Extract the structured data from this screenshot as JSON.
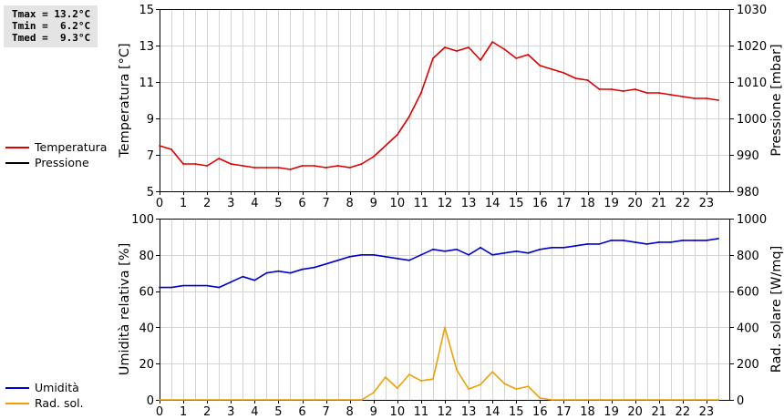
{
  "stats": {
    "tmax": "Tmax = 13.2°C",
    "tmin": "Tmin =  6.2°C",
    "tmed": "Tmed =  9.3°C"
  },
  "legend_top": [
    {
      "label": "Temperatura",
      "color": "#dd0000"
    },
    {
      "label": "Pressione",
      "color": "#000000"
    }
  ],
  "legend_bottom": [
    {
      "label": "Umidità",
      "color": "#0000cc"
    },
    {
      "label": "Rad. sol.",
      "color": "#f0a000"
    }
  ],
  "chart_data": [
    {
      "type": "line",
      "xlim": [
        0,
        24
      ],
      "x_ticks": [
        "0",
        "1",
        "2",
        "3",
        "4",
        "5",
        "6",
        "7",
        "8",
        "9",
        "10",
        "11",
        "12",
        "13",
        "14",
        "15",
        "16",
        "17",
        "18",
        "19",
        "20",
        "21",
        "22",
        "23"
      ],
      "ylabel": "Temperatura [°C]",
      "ylim": [
        5,
        15
      ],
      "y_ticks": [
        "5",
        "7",
        "9",
        "11",
        "13",
        "15"
      ],
      "ylabel_right": "Pressione [mbar]",
      "ylim_right": [
        980,
        1030
      ],
      "y_ticks_right": [
        "980",
        "990",
        "1000",
        "1010",
        "1020",
        "1030"
      ],
      "grid": true,
      "series": [
        {
          "name": "Temperatura",
          "color": "#dd0000",
          "axis": "left",
          "x": [
            0,
            0.5,
            1,
            1.5,
            2,
            2.5,
            3,
            3.5,
            4,
            4.5,
            5,
            5.5,
            6,
            6.5,
            7,
            7.5,
            8,
            8.5,
            9,
            9.5,
            10,
            10.5,
            11,
            11.5,
            12,
            12.5,
            13,
            13.5,
            14,
            14.5,
            15,
            15.5,
            16,
            16.5,
            17,
            17.5,
            18,
            18.5,
            19,
            19.5,
            20,
            20.5,
            21,
            21.5,
            22,
            22.5,
            23,
            23.5
          ],
          "y": [
            7.5,
            7.3,
            6.5,
            6.5,
            6.4,
            6.8,
            6.5,
            6.4,
            6.3,
            6.3,
            6.3,
            6.2,
            6.4,
            6.4,
            6.3,
            6.4,
            6.3,
            6.5,
            6.9,
            7.5,
            8.1,
            9.1,
            10.4,
            12.3,
            12.9,
            12.7,
            12.9,
            12.2,
            13.2,
            12.8,
            12.3,
            12.5,
            11.9,
            11.7,
            11.5,
            11.2,
            11.1,
            10.6,
            10.6,
            10.5,
            10.6,
            10.4,
            10.4,
            10.3,
            10.2,
            10.1,
            10.1,
            10.0
          ]
        },
        {
          "name": "Pressione",
          "color": "#000000",
          "axis": "right",
          "x": [],
          "y": []
        }
      ]
    },
    {
      "type": "line",
      "xlim": [
        0,
        24
      ],
      "x_ticks": [
        "0",
        "1",
        "2",
        "3",
        "4",
        "5",
        "6",
        "7",
        "8",
        "9",
        "10",
        "11",
        "12",
        "13",
        "14",
        "15",
        "16",
        "17",
        "18",
        "19",
        "20",
        "21",
        "22",
        "23"
      ],
      "ylabel": "Umidità relativa [%]",
      "ylim": [
        0,
        100
      ],
      "y_ticks": [
        "0",
        "20",
        "40",
        "60",
        "80",
        "100"
      ],
      "ylabel_right": "Rad. solare [W/mq]",
      "ylim_right": [
        0,
        1000
      ],
      "y_ticks_right": [
        "0",
        "200",
        "400",
        "600",
        "800",
        "1000"
      ],
      "grid": true,
      "series": [
        {
          "name": "Umidità",
          "color": "#0000cc",
          "axis": "left",
          "x": [
            0,
            0.5,
            1,
            1.5,
            2,
            2.5,
            3,
            3.5,
            4,
            4.5,
            5,
            5.5,
            6,
            6.5,
            7,
            7.5,
            8,
            8.5,
            9,
            9.5,
            10,
            10.5,
            11,
            11.5,
            12,
            12.5,
            13,
            13.5,
            14,
            14.5,
            15,
            15.5,
            16,
            16.5,
            17,
            17.5,
            18,
            18.5,
            19,
            19.5,
            20,
            20.5,
            21,
            21.5,
            22,
            22.5,
            23,
            23.5
          ],
          "y": [
            62,
            62,
            63,
            63,
            63,
            62,
            65,
            68,
            66,
            70,
            71,
            70,
            72,
            73,
            75,
            77,
            79,
            80,
            80,
            79,
            78,
            77,
            80,
            83,
            82,
            83,
            80,
            84,
            80,
            81,
            82,
            81,
            83,
            84,
            84,
            85,
            86,
            86,
            88,
            88,
            87,
            86,
            87,
            87,
            88,
            88,
            88,
            89
          ]
        },
        {
          "name": "Rad. sol.",
          "color": "#f0a000",
          "axis": "right",
          "x": [
            0,
            0.5,
            1,
            1.5,
            2,
            2.5,
            3,
            3.5,
            4,
            4.5,
            5,
            5.5,
            6,
            6.5,
            7,
            7.5,
            8,
            8.5,
            9,
            9.5,
            10,
            10.5,
            11,
            11.5,
            12,
            12.5,
            13,
            13.5,
            14,
            14.5,
            15,
            15.5,
            16,
            16.5,
            17,
            17.5,
            18,
            18.5,
            19,
            19.5,
            20,
            20.5,
            21,
            21.5,
            22,
            22.5,
            23,
            23.5
          ],
          "y": [
            0,
            0,
            0,
            0,
            0,
            0,
            0,
            0,
            0,
            0,
            0,
            0,
            0,
            0,
            0,
            0,
            0,
            0,
            40,
            125,
            65,
            140,
            105,
            115,
            400,
            165,
            60,
            85,
            155,
            90,
            60,
            75,
            10,
            0,
            0,
            0,
            0,
            0,
            0,
            0,
            0,
            0,
            0,
            0,
            0,
            0,
            0,
            0
          ]
        }
      ]
    }
  ]
}
